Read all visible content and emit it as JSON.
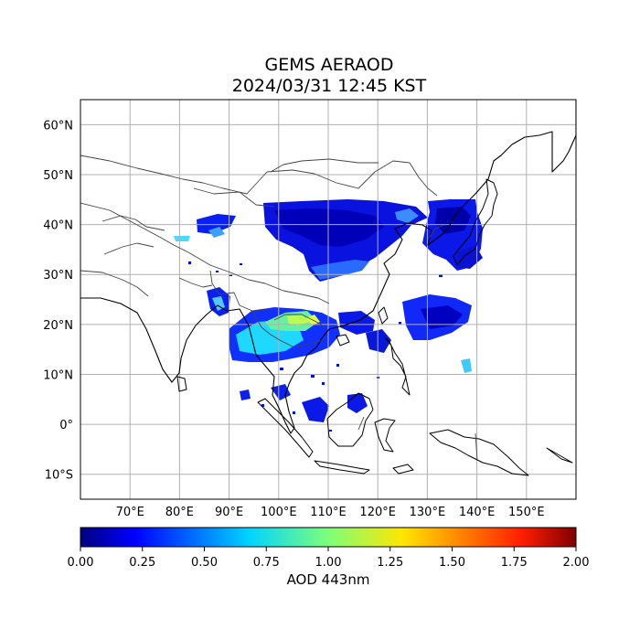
{
  "title": {
    "line1": "GEMS AERAOD",
    "line2": "2024/03/31 12:45 KST"
  },
  "map": {
    "lon_range": [
      60,
      160
    ],
    "lat_range": [
      -15,
      65
    ],
    "gridlines": true,
    "coastlines": true,
    "borders": true,
    "lat_labels": [
      "60°N",
      "50°N",
      "40°N",
      "30°N",
      "20°N",
      "10°N",
      "0°",
      "10°S"
    ],
    "lat_values": [
      60,
      50,
      40,
      30,
      20,
      10,
      0,
      -10
    ],
    "lon_labels": [
      "70°E",
      "80°E",
      "90°E",
      "100°E",
      "110°E",
      "120°E",
      "130°E",
      "140°E",
      "150°E"
    ],
    "lon_values": [
      70,
      80,
      90,
      100,
      110,
      120,
      130,
      140,
      150
    ]
  },
  "colorbar": {
    "label": "AOD 443nm",
    "range": [
      0,
      2
    ],
    "colormap": "jet",
    "tick_labels": [
      "0.00",
      "0.25",
      "0.50",
      "0.75",
      "1.00",
      "1.25",
      "1.50",
      "1.75",
      "2.00"
    ],
    "tick_values": [
      0,
      0.25,
      0.5,
      0.75,
      1.0,
      1.25,
      1.5,
      1.75,
      2.0
    ]
  },
  "colors": {
    "low_aod": "#000080",
    "mid_aod": "#00e5ff",
    "high_aod": "#800000",
    "grid": "#b0b0b0",
    "coast": "#000000",
    "border": "#444444"
  }
}
